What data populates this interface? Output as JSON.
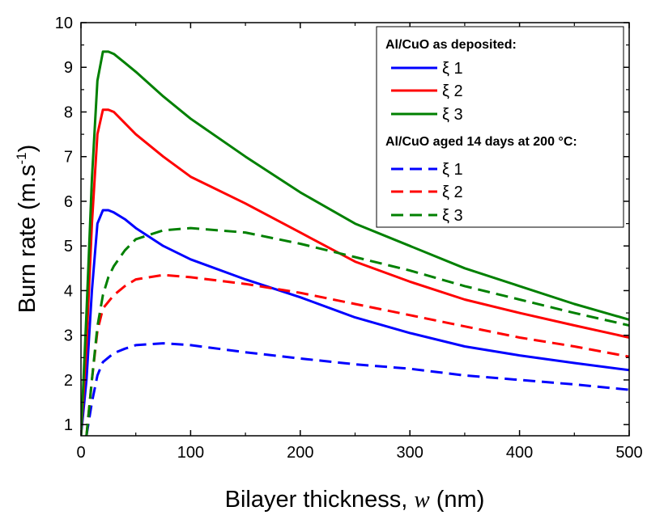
{
  "chart_data": {
    "type": "line",
    "xlabel_prefix": "Bilayer thickness, ",
    "xlabel_var": "w",
    "xlabel_unit": " (nm)",
    "ylabel_main": "Burn rate (m.s",
    "ylabel_sup": "-1",
    "ylabel_close": ")",
    "xlim": [
      0,
      500
    ],
    "ylim": [
      0.75,
      10
    ],
    "x_ticks": [
      0,
      100,
      200,
      300,
      400,
      500
    ],
    "y_ticks": [
      1,
      2,
      3,
      4,
      5,
      6,
      7,
      8,
      9,
      10
    ],
    "grid": false,
    "legend_placement": "top-right",
    "legend_groups": [
      {
        "heading": "Al/CuO as deposited:",
        "entries": [
          0,
          1,
          2
        ]
      },
      {
        "heading": "Al/CuO aged 14 days at 200 °C:",
        "entries": [
          3,
          4,
          5
        ]
      }
    ],
    "series": [
      {
        "name": "ξ 1",
        "color": "#0000ff",
        "dash": "solid",
        "x": [
          0,
          5,
          10,
          15,
          20,
          25,
          30,
          40,
          50,
          75,
          100,
          150,
          200,
          250,
          300,
          350,
          400,
          450,
          500
        ],
        "y": [
          0.75,
          2.0,
          4.0,
          5.5,
          5.8,
          5.8,
          5.75,
          5.6,
          5.4,
          5.0,
          4.7,
          4.25,
          3.85,
          3.4,
          3.05,
          2.75,
          2.55,
          2.38,
          2.22
        ]
      },
      {
        "name": "ξ 2",
        "color": "#ff0000",
        "dash": "solid",
        "x": [
          0,
          5,
          10,
          15,
          20,
          25,
          30,
          40,
          50,
          75,
          100,
          150,
          200,
          250,
          300,
          350,
          400,
          450,
          500
        ],
        "y": [
          0.75,
          2.8,
          5.5,
          7.5,
          8.05,
          8.05,
          8.0,
          7.75,
          7.5,
          7.0,
          6.55,
          5.95,
          5.3,
          4.65,
          4.2,
          3.8,
          3.5,
          3.22,
          2.95
        ]
      },
      {
        "name": "ξ 3",
        "color": "#008000",
        "dash": "solid",
        "x": [
          0,
          5,
          10,
          15,
          20,
          25,
          30,
          40,
          50,
          75,
          100,
          150,
          200,
          250,
          300,
          350,
          400,
          450,
          500
        ],
        "y": [
          0.75,
          3.5,
          6.5,
          8.7,
          9.35,
          9.35,
          9.3,
          9.1,
          8.9,
          8.35,
          7.85,
          7.0,
          6.2,
          5.5,
          5.0,
          4.5,
          4.1,
          3.7,
          3.35
        ]
      },
      {
        "name": "ξ 1",
        "color": "#0000ff",
        "dash": "dashed",
        "x": [
          5,
          10,
          15,
          20,
          25,
          30,
          40,
          50,
          75,
          100,
          150,
          200,
          250,
          300,
          350,
          400,
          450,
          500
        ],
        "y": [
          0.75,
          1.5,
          2.1,
          2.4,
          2.5,
          2.6,
          2.7,
          2.78,
          2.82,
          2.78,
          2.62,
          2.48,
          2.35,
          2.25,
          2.1,
          2.0,
          1.9,
          1.78
        ]
      },
      {
        "name": "ξ 2",
        "color": "#ff0000",
        "dash": "dashed",
        "x": [
          5,
          10,
          15,
          20,
          25,
          30,
          40,
          50,
          75,
          100,
          150,
          200,
          250,
          300,
          350,
          400,
          450,
          500
        ],
        "y": [
          0.75,
          2.0,
          3.1,
          3.6,
          3.75,
          3.9,
          4.1,
          4.25,
          4.35,
          4.3,
          4.15,
          3.95,
          3.7,
          3.45,
          3.2,
          2.95,
          2.75,
          2.52
        ]
      },
      {
        "name": "ξ 3",
        "color": "#008000",
        "dash": "dashed",
        "x": [
          5,
          10,
          15,
          20,
          25,
          30,
          40,
          50,
          75,
          100,
          150,
          200,
          250,
          300,
          350,
          400,
          450,
          500
        ],
        "y": [
          0.75,
          2.0,
          3.2,
          3.9,
          4.3,
          4.55,
          4.9,
          5.15,
          5.35,
          5.4,
          5.3,
          5.05,
          4.75,
          4.45,
          4.1,
          3.8,
          3.5,
          3.22
        ]
      }
    ]
  }
}
